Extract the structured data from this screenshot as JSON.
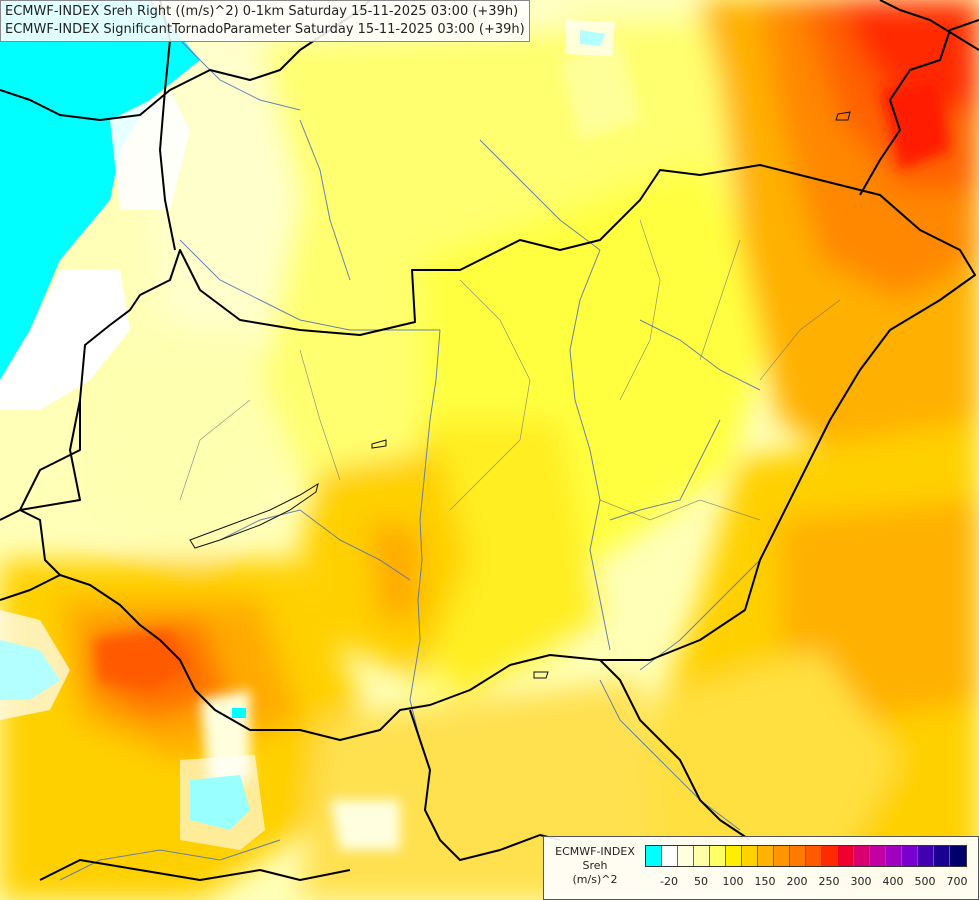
{
  "header": {
    "line1": "ECMWF-INDEX Sreh Right ((m/s)^2) 0-1km Saturday 15-11-2025 03:00 (+39h)",
    "line2": "ECMWF-INDEX SignificantTornadoParameter Saturday 15-11-2025 03:00 (+39h)"
  },
  "legend": {
    "title_line1": "ECMWF-INDEX",
    "title_line2": "Sreh",
    "title_line3": "(m/s)^2",
    "colors": [
      "#00ffff",
      "#ffffff",
      "#ffffdd",
      "#ffffaa",
      "#ffff66",
      "#ffee00",
      "#ffd200",
      "#ffb300",
      "#ff9600",
      "#ff7a00",
      "#ff5a00",
      "#ff2a00",
      "#ee0030",
      "#d80070",
      "#c000a0",
      "#a000c0",
      "#7a00d0",
      "#4000b0",
      "#1a0090",
      "#00006a"
    ],
    "ticks": [
      "-20",
      "50",
      "100",
      "150",
      "200",
      "250",
      "300",
      "400",
      "500",
      "700"
    ]
  },
  "colors": {
    "cyan": "#00ffff",
    "white": "#ffffff",
    "pale_yellow": "#ffffcc",
    "light_yellow": "#ffff99",
    "yellow": "#ffff33",
    "gold": "#ffdd00",
    "orange_light": "#ffbb00",
    "orange": "#ff9900",
    "orange_dark": "#ff7700",
    "red_orange": "#ff4400",
    "red": "#ff1100"
  }
}
